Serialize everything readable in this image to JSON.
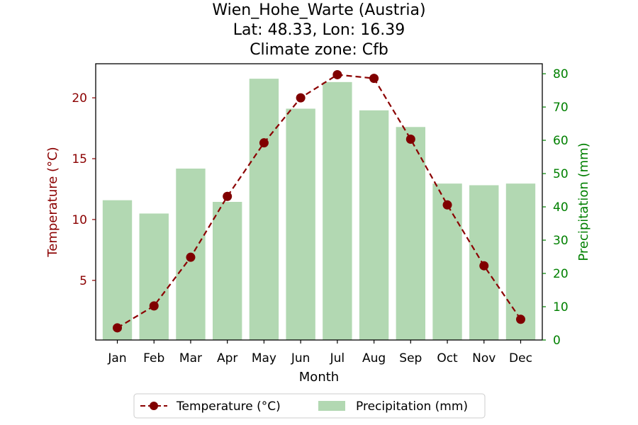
{
  "chart_data": {
    "type": "bar",
    "title_lines": [
      "Wien_Hohe_Warte (Austria)",
      "Lat: 48.33, Lon: 16.39",
      "Climate zone: Cfb"
    ],
    "xlabel": "Month",
    "ylabel_left": "Temperature (°C)",
    "ylabel_right": "Precipitation (mm)",
    "categories": [
      "Jan",
      "Feb",
      "Mar",
      "Apr",
      "May",
      "Jun",
      "Jul",
      "Aug",
      "Sep",
      "Oct",
      "Nov",
      "Dec"
    ],
    "series": [
      {
        "name": "Temperature (°C)",
        "type": "line",
        "axis": "left",
        "color": "#8b0000",
        "marker_color": "#800000",
        "line_style": "dashed",
        "values": [
          1.1,
          2.9,
          6.9,
          11.9,
          16.3,
          20.0,
          21.9,
          21.6,
          16.6,
          11.2,
          6.2,
          1.8
        ]
      },
      {
        "name": "Precipitation (mm)",
        "type": "bar",
        "axis": "right",
        "color": "#b2d8b2",
        "values": [
          42,
          38,
          51.5,
          41.5,
          78.5,
          69.5,
          77.5,
          69,
          64,
          47,
          46.5,
          47
        ]
      }
    ],
    "ylim_left": [
      0.1,
      22.8
    ],
    "yticks_left": [
      5,
      10,
      15,
      20
    ],
    "ylim_right": [
      0,
      83
    ],
    "yticks_right": [
      0,
      10,
      20,
      30,
      40,
      50,
      60,
      70,
      80
    ],
    "left_axis_color": "#8b0000",
    "right_axis_color": "#008000",
    "grid": false,
    "legend_placement": "bottom-center"
  }
}
